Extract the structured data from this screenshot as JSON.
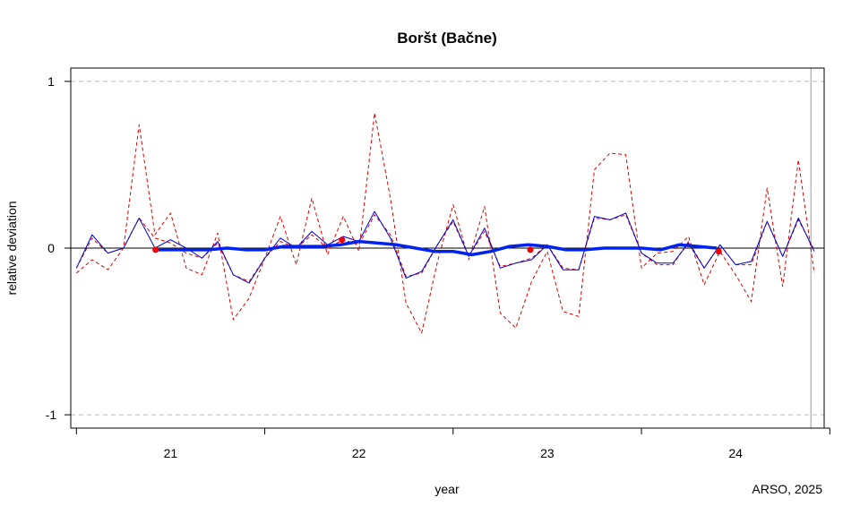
{
  "chart_data": {
    "type": "line",
    "title": "Boršt (Bačne)",
    "xlabel": "year",
    "ylabel": "relative deviation",
    "credit": "ARSO, 2025",
    "xlim": [
      20.47,
      24.47
    ],
    "ylim": [
      -1.08,
      1.08
    ],
    "x_ticks": [
      20.5,
      21.5,
      22.5,
      23.5,
      24.5
    ],
    "x_tick_labels": [
      {
        "x": 21,
        "label": "21"
      },
      {
        "x": 22,
        "label": "22"
      },
      {
        "x": 23,
        "label": "23"
      },
      {
        "x": 24,
        "label": "24"
      }
    ],
    "y_ticks": [
      {
        "y": 1,
        "label": "1"
      },
      {
        "y": 0,
        "label": "0"
      },
      {
        "y": -1,
        "label": "-1"
      }
    ],
    "gridlines_y": [
      1,
      -1
    ],
    "reference_line_y": 0,
    "colors": {
      "upper_lower": "#dd0000",
      "thin_series": "#0000cc",
      "smooth_series": "#0022ee",
      "points": "#ee0000",
      "grid": "#bbbbbb",
      "vline": "#bbbbbb"
    },
    "series": [
      {
        "role": "upper",
        "style": "dashed",
        "x": [
          20.5,
          20.583,
          20.667,
          20.75,
          20.833,
          20.917,
          21.0,
          21.083,
          21.167,
          21.25,
          21.333,
          21.417,
          21.5,
          21.583,
          21.667,
          21.75,
          21.833,
          21.917,
          22.0,
          22.083,
          22.167,
          22.25,
          22.333,
          22.417,
          22.5,
          22.583,
          22.667,
          22.75,
          22.833,
          22.917,
          23.0,
          23.083,
          23.167,
          23.25,
          23.333,
          23.417,
          23.5,
          23.583,
          23.667,
          23.75,
          23.833,
          23.917,
          24.0,
          24.083,
          24.167,
          24.25,
          24.333,
          24.417
        ],
        "values": [
          -0.15,
          -0.07,
          -0.13,
          0.0,
          0.74,
          0.08,
          0.21,
          -0.12,
          -0.16,
          0.09,
          -0.43,
          -0.3,
          -0.06,
          0.19,
          -0.1,
          0.3,
          -0.04,
          0.19,
          -0.02,
          0.81,
          0.3,
          -0.33,
          -0.51,
          -0.08,
          0.26,
          -0.07,
          0.25,
          -0.39,
          -0.48,
          -0.2,
          -0.02,
          -0.38,
          -0.41,
          0.47,
          0.57,
          0.56,
          -0.12,
          -0.03,
          -0.02,
          0.07,
          -0.22,
          -0.02,
          -0.16,
          -0.32,
          0.36,
          -0.23,
          0.53,
          -0.15
        ]
      },
      {
        "role": "lower",
        "style": "dashed",
        "x": [
          20.5,
          20.583,
          20.667,
          20.75,
          20.833,
          20.917,
          21.0,
          21.083,
          21.167,
          21.25,
          21.333,
          21.417,
          21.5,
          21.583,
          21.667,
          21.75,
          21.833,
          21.917,
          22.0,
          22.083,
          22.167,
          22.25,
          22.333,
          22.417,
          22.5,
          22.583,
          22.667,
          22.75,
          22.833,
          22.917,
          23.0,
          23.083,
          23.167,
          23.25,
          23.333,
          23.417,
          23.5,
          23.583,
          23.667,
          23.75,
          23.833,
          23.917,
          24.0,
          24.083,
          24.167,
          24.25,
          24.333,
          24.417
        ],
        "values": [
          -0.12,
          0.06,
          -0.03,
          0.0,
          0.18,
          0.06,
          0.03,
          -0.03,
          -0.06,
          0.03,
          -0.16,
          -0.2,
          -0.06,
          0.04,
          0.0,
          0.08,
          0.0,
          0.05,
          0.02,
          0.2,
          0.08,
          -0.17,
          -0.15,
          0.02,
          0.16,
          -0.05,
          0.1,
          -0.11,
          -0.09,
          -0.06,
          0.02,
          -0.12,
          -0.13,
          0.18,
          0.17,
          0.2,
          -0.03,
          -0.1,
          -0.1,
          0.04,
          -0.12,
          0.02,
          -0.1,
          -0.1,
          0.16,
          -0.05,
          0.17,
          -0.01
        ]
      },
      {
        "role": "thin",
        "style": "solid-thin",
        "x": [
          20.5,
          20.583,
          20.667,
          20.75,
          20.833,
          20.917,
          21.0,
          21.083,
          21.167,
          21.25,
          21.333,
          21.417,
          21.5,
          21.583,
          21.667,
          21.75,
          21.833,
          21.917,
          22.0,
          22.083,
          22.167,
          22.25,
          22.333,
          22.417,
          22.5,
          22.583,
          22.667,
          22.75,
          22.833,
          22.917,
          23.0,
          23.083,
          23.167,
          23.25,
          23.333,
          23.417,
          23.5,
          23.583,
          23.667,
          23.75,
          23.833,
          23.917,
          24.0,
          24.083,
          24.167,
          24.25,
          24.333,
          24.417
        ],
        "values": [
          -0.12,
          0.08,
          -0.03,
          0.0,
          0.18,
          0.0,
          0.05,
          0.0,
          -0.06,
          0.04,
          -0.16,
          -0.21,
          -0.06,
          0.06,
          0.0,
          0.1,
          0.02,
          0.07,
          0.04,
          0.22,
          0.06,
          -0.18,
          -0.14,
          0.02,
          0.17,
          -0.05,
          0.12,
          -0.12,
          -0.09,
          -0.07,
          0.02,
          -0.13,
          -0.13,
          0.19,
          0.17,
          0.21,
          -0.03,
          -0.09,
          -0.09,
          0.03,
          -0.12,
          0.02,
          -0.1,
          -0.08,
          0.16,
          -0.05,
          0.18,
          -0.02
        ]
      },
      {
        "role": "smooth",
        "style": "solid-thick",
        "x": [
          20.92,
          21.0,
          21.1,
          21.2,
          21.3,
          21.4,
          21.5,
          21.6,
          21.7,
          21.8,
          21.9,
          22.0,
          22.1,
          22.2,
          22.3,
          22.4,
          22.5,
          22.6,
          22.7,
          22.8,
          22.9,
          23.0,
          23.1,
          23.2,
          23.3,
          23.4,
          23.5,
          23.6,
          23.7,
          23.8,
          23.9
        ],
        "values": [
          -0.01,
          -0.01,
          -0.01,
          -0.01,
          0.0,
          -0.01,
          -0.01,
          0.01,
          0.01,
          0.01,
          0.02,
          0.04,
          0.03,
          0.02,
          0.0,
          -0.02,
          -0.02,
          -0.04,
          -0.02,
          0.01,
          0.02,
          0.01,
          -0.01,
          -0.01,
          0.0,
          0.0,
          0.0,
          -0.01,
          0.02,
          0.01,
          0.0
        ]
      }
    ],
    "points": {
      "x": [
        20.92,
        21.91,
        22.91,
        23.91
      ],
      "values": [
        -0.01,
        0.05,
        -0.01,
        -0.02
      ]
    }
  }
}
